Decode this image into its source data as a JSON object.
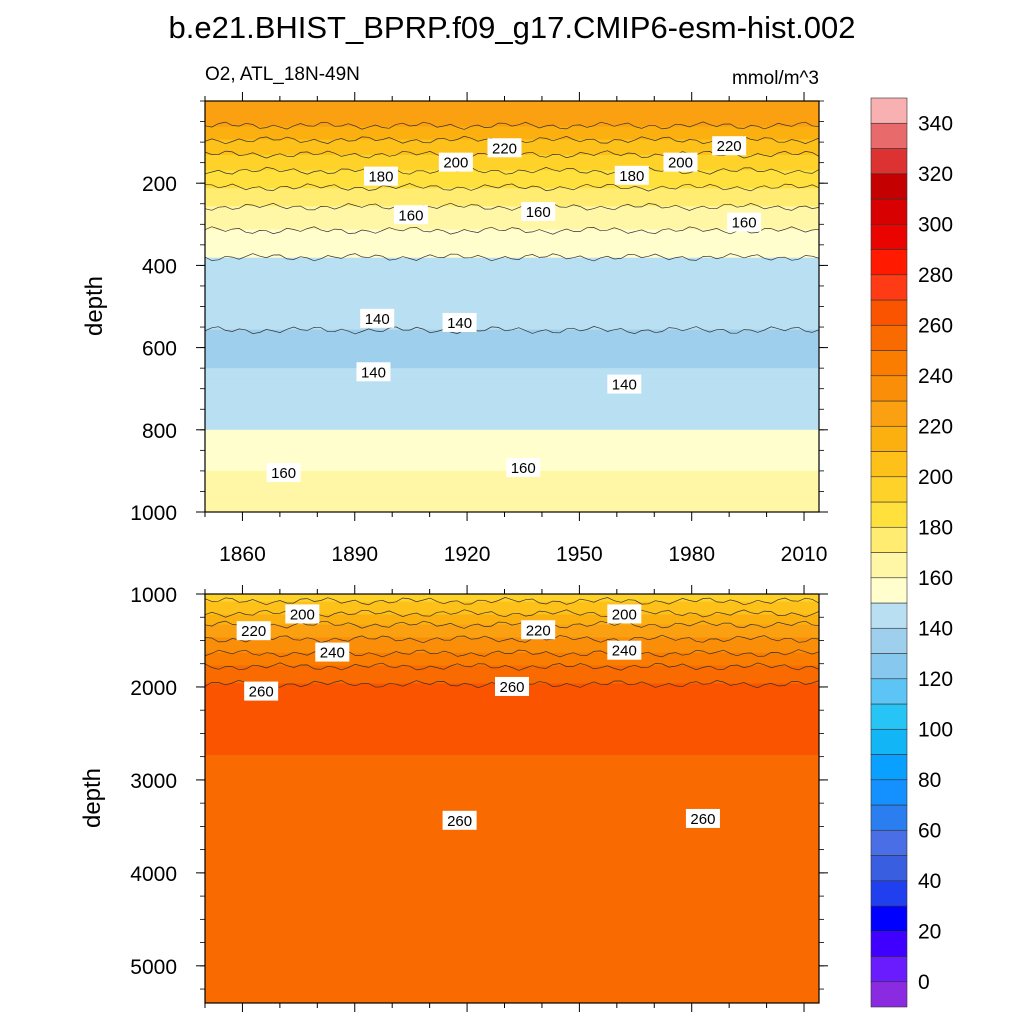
{
  "title": "b.e21.BHIST_BPRP.f09_g17.CMIP6-esm-hist.002",
  "variable_label": "O2, ATL_18N-49N",
  "units": "mmol/m^3",
  "chart_data": [
    {
      "type": "heatmap",
      "panel": "upper",
      "ylabel": "depth",
      "xlim": [
        1850,
        2014
      ],
      "ylim": [
        1000,
        0
      ],
      "x_ticks": [
        "1860",
        "1890",
        "1920",
        "1950",
        "1980",
        "2010"
      ],
      "y_ticks": [
        "200",
        "400",
        "600",
        "800",
        "1000"
      ],
      "levels": [
        {
          "depth": 0,
          "value": 225
        },
        {
          "depth": 60,
          "value": 220
        },
        {
          "depth": 110,
          "value": 205
        },
        {
          "depth": 170,
          "value": 190
        },
        {
          "depth": 230,
          "value": 175
        },
        {
          "depth": 300,
          "value": 162
        },
        {
          "depth": 380,
          "value": 150
        },
        {
          "depth": 470,
          "value": 144
        },
        {
          "depth": 600,
          "value": 138
        },
        {
          "depth": 700,
          "value": 142
        },
        {
          "depth": 800,
          "value": 150
        },
        {
          "depth": 880,
          "value": 158
        },
        {
          "depth": 940,
          "value": 165
        },
        {
          "depth": 1000,
          "value": 170
        }
      ],
      "contour_labels": [
        {
          "text": "220",
          "x": 1930,
          "y": 115
        },
        {
          "text": "220",
          "x": 1990,
          "y": 110
        },
        {
          "text": "200",
          "x": 1917,
          "y": 150
        },
        {
          "text": "200",
          "x": 1977,
          "y": 150
        },
        {
          "text": "180",
          "x": 1897,
          "y": 184
        },
        {
          "text": "180",
          "x": 1964,
          "y": 182
        },
        {
          "text": "160",
          "x": 1905,
          "y": 278
        },
        {
          "text": "160",
          "x": 1939,
          "y": 270
        },
        {
          "text": "160",
          "x": 1994,
          "y": 296
        },
        {
          "text": "140",
          "x": 1896,
          "y": 530
        },
        {
          "text": "140",
          "x": 1918,
          "y": 540
        },
        {
          "text": "140",
          "x": 1895,
          "y": 660
        },
        {
          "text": "140",
          "x": 1962,
          "y": 690
        },
        {
          "text": "160",
          "x": 1871,
          "y": 905
        },
        {
          "text": "160",
          "x": 1935,
          "y": 893
        }
      ]
    },
    {
      "type": "heatmap",
      "panel": "lower",
      "ylabel": "depth",
      "xlim": [
        1850,
        2014
      ],
      "ylim": [
        5400,
        1000
      ],
      "y_ticks": [
        "1000",
        "2000",
        "3000",
        "4000",
        "5000"
      ],
      "levels": [
        {
          "depth": 1000,
          "value": 195
        },
        {
          "depth": 1150,
          "value": 205
        },
        {
          "depth": 1350,
          "value": 222
        },
        {
          "depth": 1600,
          "value": 238
        },
        {
          "depth": 1800,
          "value": 252
        },
        {
          "depth": 2000,
          "value": 262
        },
        {
          "depth": 3450,
          "value": 258
        },
        {
          "depth": 5400,
          "value": 256
        }
      ],
      "contour_labels": [
        {
          "text": "200",
          "x": 1876,
          "y": 1220
        },
        {
          "text": "200",
          "x": 1962,
          "y": 1220
        },
        {
          "text": "220",
          "x": 1863,
          "y": 1400
        },
        {
          "text": "220",
          "x": 1939,
          "y": 1390
        },
        {
          "text": "240",
          "x": 1884,
          "y": 1630
        },
        {
          "text": "240",
          "x": 1962,
          "y": 1610
        },
        {
          "text": "260",
          "x": 1865,
          "y": 2050
        },
        {
          "text": "260",
          "x": 1932,
          "y": 2000
        },
        {
          "text": "260",
          "x": 1918,
          "y": 3440
        },
        {
          "text": "260",
          "x": 1983,
          "y": 3420
        }
      ]
    }
  ],
  "colorbar": {
    "labels": [
      "0",
      "20",
      "40",
      "60",
      "80",
      "100",
      "120",
      "140",
      "160",
      "180",
      "200",
      "220",
      "240",
      "260",
      "280",
      "300",
      "320",
      "340"
    ],
    "colors": [
      "#8a2be2",
      "#6a1cff",
      "#4000ff",
      "#0000ff",
      "#2040f0",
      "#3a5ee0",
      "#4a6ee6",
      "#2a7ef0",
      "#1490ff",
      "#0aa0ff",
      "#12b5f5",
      "#26c5f5",
      "#5cc5f5",
      "#86c8ee",
      "#9ecfec",
      "#b9dff2",
      "#fffecc",
      "#fff6a6",
      "#ffec70",
      "#ffe03c",
      "#ffd22a",
      "#fdc11a",
      "#fbb010",
      "#fba010",
      "#fb8e08",
      "#fa7d00",
      "#f96a00",
      "#fa5400",
      "#ff3b16",
      "#ff1a00",
      "#ea0400",
      "#d80000",
      "#c40000",
      "#dc3232",
      "#e96a6a",
      "#f8b0b0"
    ],
    "tick_values": [
      0,
      20,
      40,
      60,
      80,
      100,
      120,
      140,
      160,
      180,
      200,
      220,
      240,
      260,
      280,
      300,
      320,
      340
    ]
  }
}
